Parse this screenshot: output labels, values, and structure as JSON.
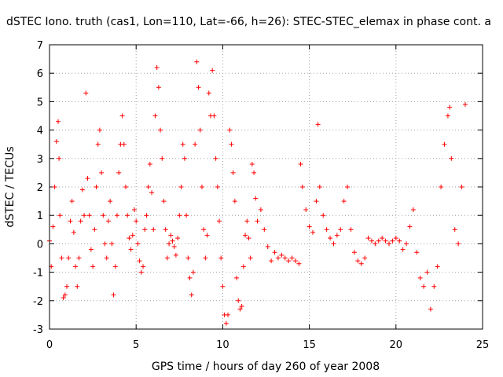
{
  "chart_data": {
    "type": "scatter",
    "title": "dSTEC Iono. truth (cas1, Lon=110, Lat=-66, h=26): STEC-STEC_elemax in phase cont. a",
    "xlabel": "GPS time / hours of day 260 of year 2008",
    "ylabel": "dSTEC  / TECUs",
    "xlim": [
      0,
      25
    ],
    "ylim": [
      -3,
      7
    ],
    "xticks": [
      0,
      5,
      10,
      15,
      20,
      25
    ],
    "yticks": [
      -3,
      -2,
      -1,
      0,
      1,
      2,
      3,
      4,
      5,
      6,
      7
    ],
    "grid": true,
    "marker": "plus",
    "color": "#ff0000",
    "series": [
      {
        "points": [
          [
            0.0,
            0.1
          ],
          [
            0.1,
            -0.8
          ],
          [
            0.2,
            0.6
          ],
          [
            0.3,
            2.0
          ],
          [
            0.4,
            3.6
          ],
          [
            0.5,
            4.3
          ],
          [
            0.55,
            3.0
          ],
          [
            0.6,
            1.0
          ],
          [
            0.7,
            -0.5
          ],
          [
            0.8,
            -1.9
          ],
          [
            0.9,
            -1.8
          ],
          [
            1.0,
            -1.5
          ],
          [
            1.1,
            -0.5
          ],
          [
            1.2,
            0.8
          ],
          [
            1.3,
            1.5
          ],
          [
            1.4,
            0.4
          ],
          [
            1.5,
            -0.8
          ],
          [
            1.6,
            -1.5
          ],
          [
            1.7,
            -0.5
          ],
          [
            1.8,
            0.8
          ],
          [
            1.9,
            1.9
          ],
          [
            2.0,
            1.0
          ],
          [
            2.1,
            5.3
          ],
          [
            2.2,
            2.3
          ],
          [
            2.3,
            1.0
          ],
          [
            2.4,
            -0.2
          ],
          [
            2.5,
            -0.8
          ],
          [
            2.6,
            0.5
          ],
          [
            2.7,
            2.0
          ],
          [
            2.8,
            3.5
          ],
          [
            2.9,
            4.0
          ],
          [
            3.0,
            2.5
          ],
          [
            3.1,
            1.0
          ],
          [
            3.2,
            0.0
          ],
          [
            3.3,
            -0.5
          ],
          [
            3.4,
            0.8
          ],
          [
            3.5,
            1.5
          ],
          [
            3.6,
            0.0
          ],
          [
            3.7,
            -1.8
          ],
          [
            3.8,
            -0.8
          ],
          [
            3.9,
            1.0
          ],
          [
            4.0,
            2.5
          ],
          [
            4.1,
            3.5
          ],
          [
            4.2,
            4.5
          ],
          [
            4.3,
            3.5
          ],
          [
            4.4,
            2.0
          ],
          [
            4.5,
            1.0
          ],
          [
            4.6,
            0.2
          ],
          [
            4.7,
            -0.2
          ],
          [
            4.8,
            0.3
          ],
          [
            4.9,
            1.2
          ],
          [
            5.0,
            0.8
          ],
          [
            5.1,
            0.0
          ],
          [
            5.2,
            -0.6
          ],
          [
            5.3,
            -1.0
          ],
          [
            5.4,
            -0.8
          ],
          [
            5.5,
            0.5
          ],
          [
            5.6,
            1.0
          ],
          [
            5.7,
            2.0
          ],
          [
            5.8,
            2.8
          ],
          [
            5.9,
            1.8
          ],
          [
            6.0,
            0.5
          ],
          [
            6.1,
            4.5
          ],
          [
            6.2,
            6.2
          ],
          [
            6.3,
            5.5
          ],
          [
            6.4,
            4.0
          ],
          [
            6.5,
            3.0
          ],
          [
            6.6,
            1.5
          ],
          [
            6.7,
            0.5
          ],
          [
            6.8,
            -0.5
          ],
          [
            6.9,
            0.0
          ],
          [
            7.0,
            0.3
          ],
          [
            7.1,
            0.1
          ],
          [
            7.2,
            -0.1
          ],
          [
            7.3,
            -0.4
          ],
          [
            7.4,
            0.2
          ],
          [
            7.5,
            1.0
          ],
          [
            7.6,
            2.0
          ],
          [
            7.7,
            3.5
          ],
          [
            7.8,
            3.0
          ],
          [
            7.9,
            1.0
          ],
          [
            8.0,
            -0.5
          ],
          [
            8.1,
            -1.2
          ],
          [
            8.2,
            -1.8
          ],
          [
            8.3,
            -1.0
          ],
          [
            8.4,
            3.5
          ],
          [
            8.5,
            6.4
          ],
          [
            8.6,
            5.5
          ],
          [
            8.7,
            4.0
          ],
          [
            8.8,
            2.0
          ],
          [
            8.9,
            0.5
          ],
          [
            9.0,
            -0.5
          ],
          [
            9.1,
            0.3
          ],
          [
            9.2,
            5.3
          ],
          [
            9.3,
            4.5
          ],
          [
            9.4,
            6.1
          ],
          [
            9.5,
            4.5
          ],
          [
            9.6,
            3.0
          ],
          [
            9.7,
            2.0
          ],
          [
            9.8,
            0.8
          ],
          [
            9.9,
            -0.5
          ],
          [
            10.0,
            -1.5
          ],
          [
            10.1,
            -2.5
          ],
          [
            10.2,
            -2.8
          ],
          [
            10.3,
            -2.5
          ],
          [
            10.4,
            4.0
          ],
          [
            10.5,
            3.5
          ],
          [
            10.6,
            2.5
          ],
          [
            10.7,
            1.5
          ],
          [
            10.8,
            -1.2
          ],
          [
            10.9,
            -2.0
          ],
          [
            11.0,
            -2.3
          ],
          [
            11.1,
            -2.2
          ],
          [
            11.2,
            -0.8
          ],
          [
            11.3,
            0.3
          ],
          [
            11.4,
            0.8
          ],
          [
            11.5,
            0.2
          ],
          [
            11.6,
            -0.5
          ],
          [
            11.7,
            2.8
          ],
          [
            11.8,
            2.5
          ],
          [
            11.9,
            1.6
          ],
          [
            12.0,
            0.8
          ],
          [
            12.2,
            1.2
          ],
          [
            12.4,
            0.5
          ],
          [
            12.6,
            -0.1
          ],
          [
            12.8,
            -0.6
          ],
          [
            13.0,
            -0.3
          ],
          [
            13.2,
            -0.5
          ],
          [
            13.4,
            -0.4
          ],
          [
            13.6,
            -0.5
          ],
          [
            13.8,
            -0.6
          ],
          [
            14.0,
            -0.5
          ],
          [
            14.2,
            -0.6
          ],
          [
            14.4,
            -0.7
          ],
          [
            14.5,
            2.8
          ],
          [
            14.6,
            2.0
          ],
          [
            14.8,
            1.2
          ],
          [
            15.0,
            0.6
          ],
          [
            15.2,
            0.4
          ],
          [
            15.4,
            1.5
          ],
          [
            15.5,
            4.2
          ],
          [
            15.6,
            2.0
          ],
          [
            15.8,
            1.0
          ],
          [
            16.0,
            0.5
          ],
          [
            16.2,
            0.2
          ],
          [
            16.4,
            0.0
          ],
          [
            16.6,
            0.3
          ],
          [
            16.8,
            0.5
          ],
          [
            17.0,
            1.5
          ],
          [
            17.2,
            2.0
          ],
          [
            17.4,
            0.5
          ],
          [
            17.6,
            -0.3
          ],
          [
            17.8,
            -0.6
          ],
          [
            18.0,
            -0.7
          ],
          [
            18.2,
            -0.5
          ],
          [
            18.4,
            0.2
          ],
          [
            18.6,
            0.1
          ],
          [
            18.8,
            0.0
          ],
          [
            19.0,
            0.1
          ],
          [
            19.2,
            0.2
          ],
          [
            19.4,
            0.1
          ],
          [
            19.6,
            0.0
          ],
          [
            19.8,
            0.1
          ],
          [
            20.0,
            0.2
          ],
          [
            20.2,
            0.1
          ],
          [
            20.4,
            -0.2
          ],
          [
            20.6,
            0.0
          ],
          [
            20.8,
            0.6
          ],
          [
            21.0,
            1.2
          ],
          [
            21.2,
            -0.3
          ],
          [
            21.4,
            -1.2
          ],
          [
            21.6,
            -1.5
          ],
          [
            21.8,
            -1.0
          ],
          [
            22.0,
            -2.3
          ],
          [
            22.2,
            -1.5
          ],
          [
            22.4,
            -0.8
          ],
          [
            22.6,
            2.0
          ],
          [
            22.8,
            3.5
          ],
          [
            23.0,
            4.5
          ],
          [
            23.1,
            4.8
          ],
          [
            23.2,
            3.0
          ],
          [
            23.4,
            0.5
          ],
          [
            23.6,
            0.0
          ],
          [
            23.8,
            2.0
          ],
          [
            24.0,
            4.9
          ]
        ]
      }
    ]
  }
}
